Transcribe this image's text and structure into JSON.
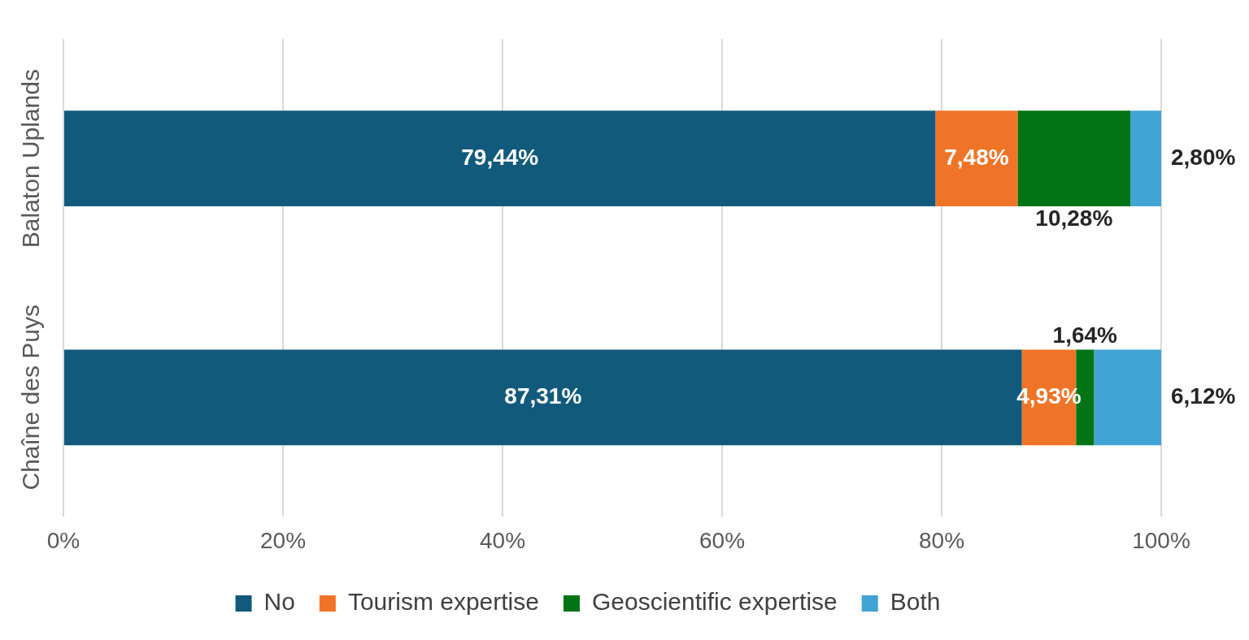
{
  "chart_data": {
    "type": "bar",
    "orientation": "horizontal",
    "stacked": true,
    "categories": [
      "Balaton Uplands",
      "Chaîne des Puys"
    ],
    "series": [
      {
        "name": "No",
        "color": "#125a7b",
        "values": [
          79.44,
          87.31
        ],
        "value_labels": [
          "79,44%",
          "87,31%"
        ]
      },
      {
        "name": "Tourism expertise",
        "color": "#f07427",
        "values": [
          7.48,
          4.93
        ],
        "value_labels": [
          "7,48%",
          "4,93%"
        ]
      },
      {
        "name": "Geoscientific expertise",
        "color": "#037415",
        "values": [
          10.28,
          1.64
        ],
        "value_labels": [
          "10,28%",
          "1,64%"
        ]
      },
      {
        "name": "Both",
        "color": "#42a3d5",
        "values": [
          2.8,
          6.12
        ],
        "value_labels": [
          "2,80%",
          "6,12%"
        ]
      }
    ],
    "xlim": [
      0,
      100
    ],
    "xticks": [
      {
        "value": 0,
        "label": "0%"
      },
      {
        "value": 20,
        "label": "20%"
      },
      {
        "value": 40,
        "label": "40%"
      },
      {
        "value": 60,
        "label": "60%"
      },
      {
        "value": 80,
        "label": "80%"
      },
      {
        "value": 100,
        "label": "100%"
      }
    ],
    "grid": "x",
    "legend": "bottom"
  }
}
